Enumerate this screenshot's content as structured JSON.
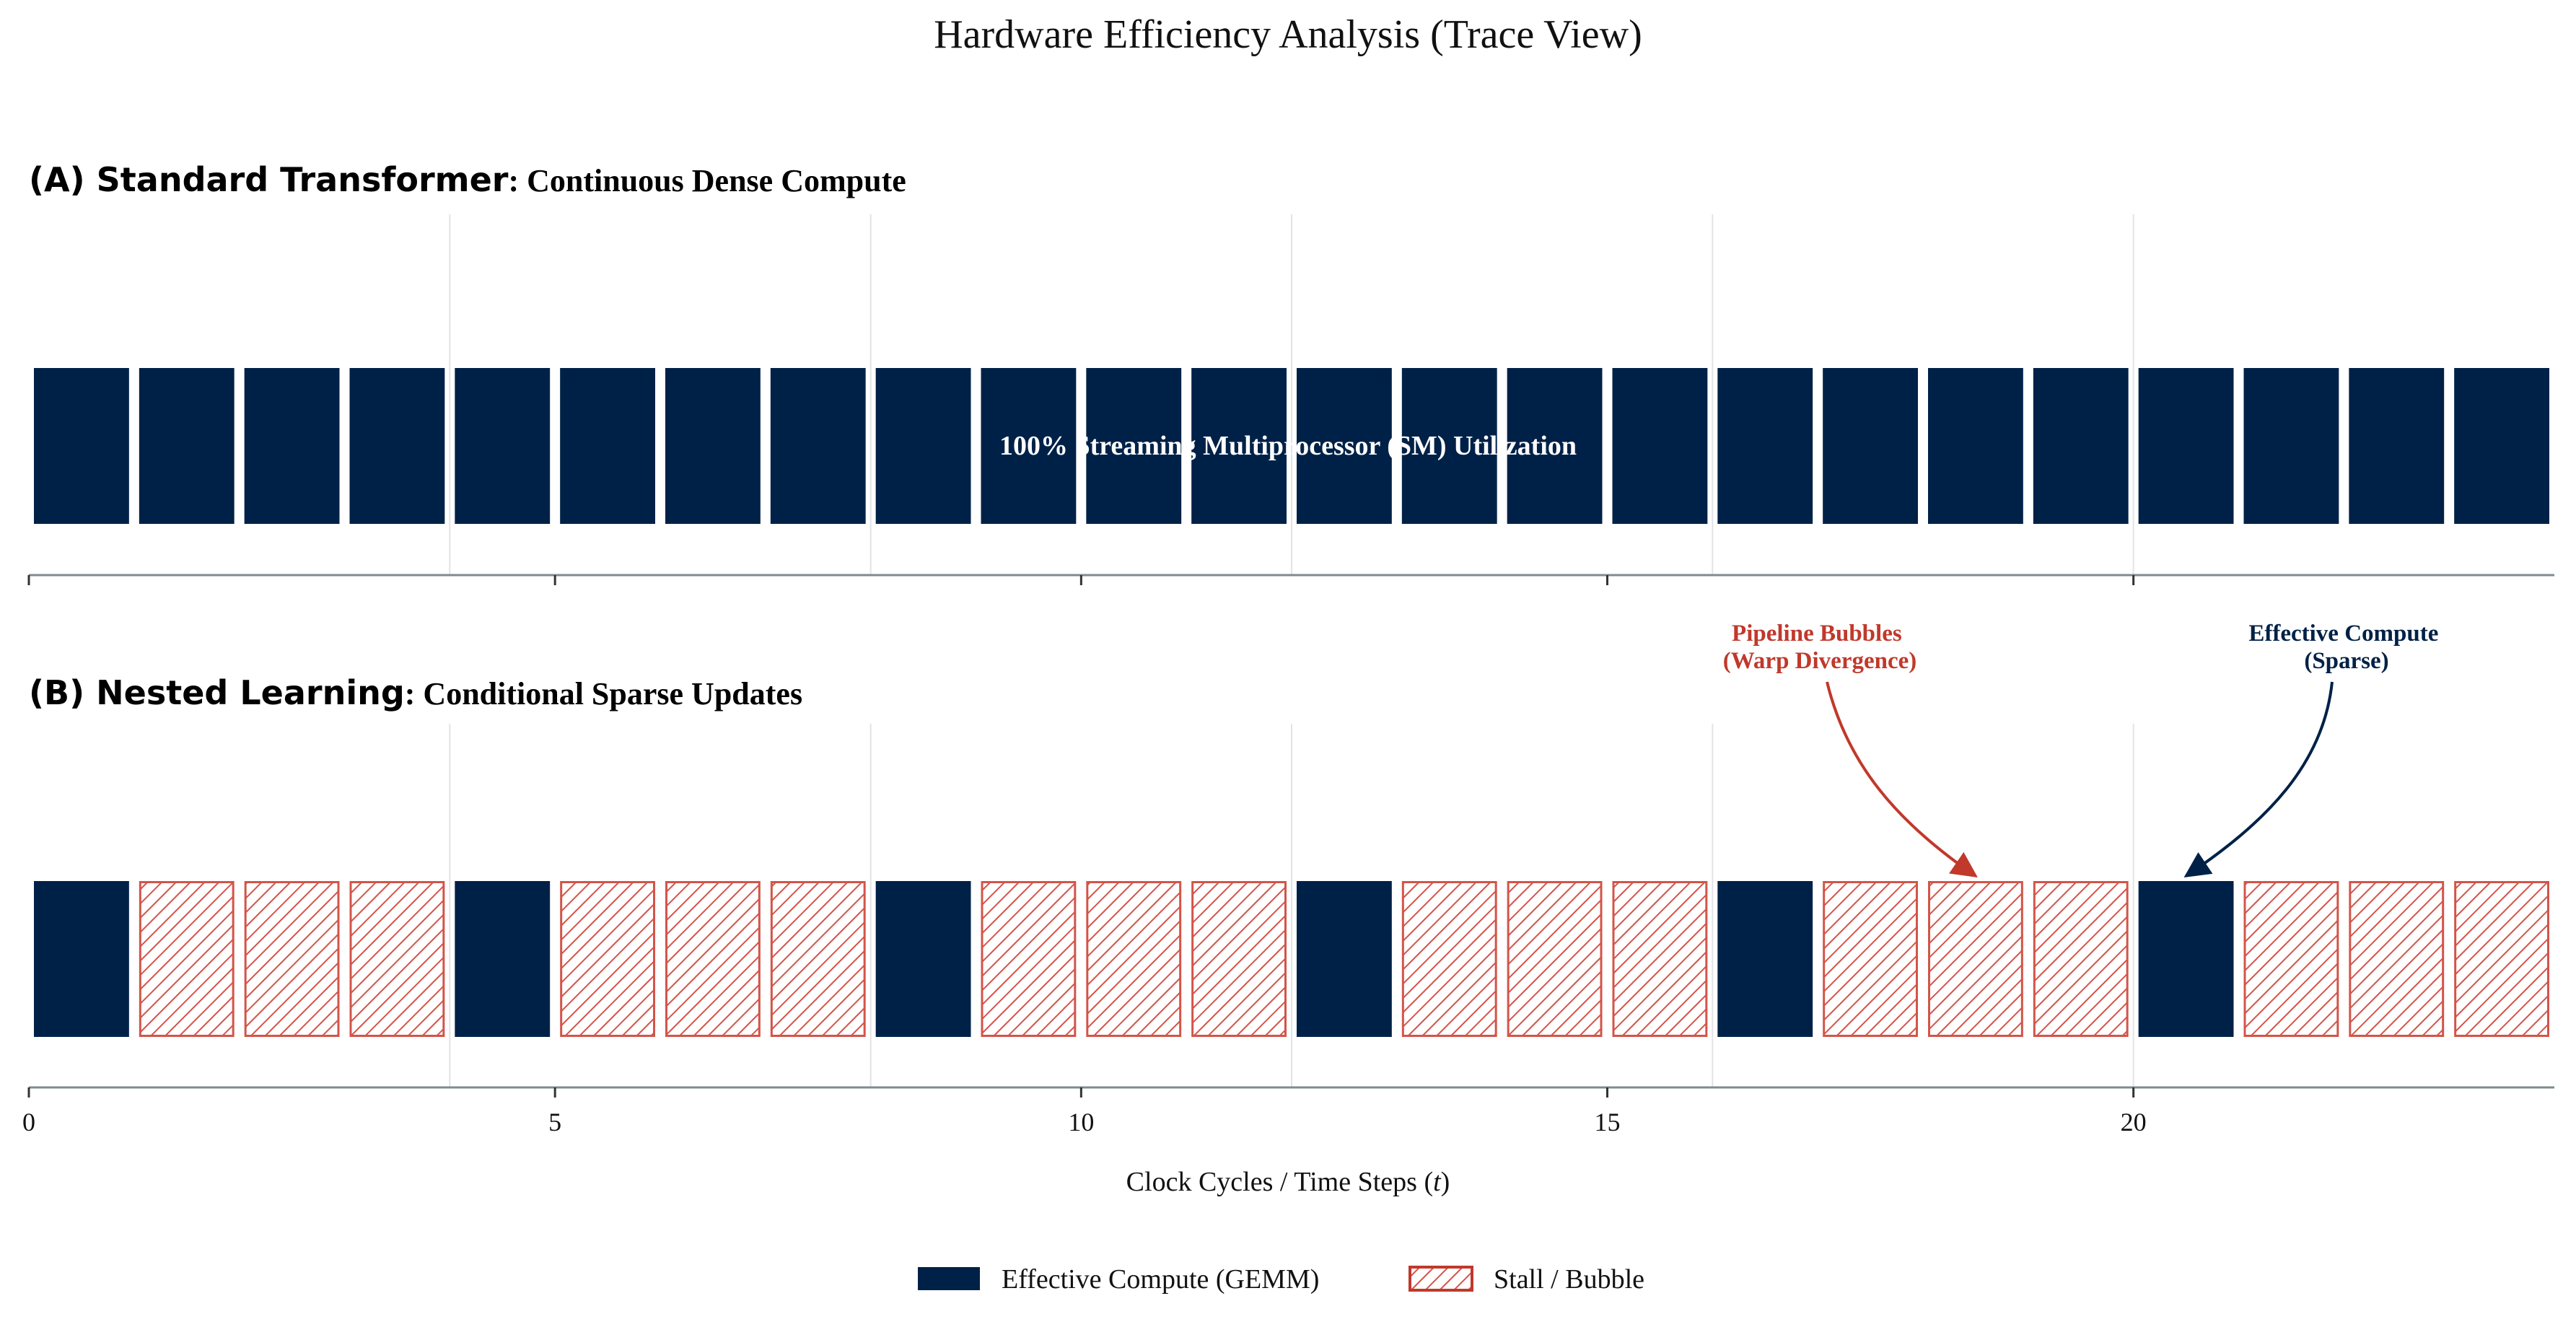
{
  "chart_data": {
    "type": "bar",
    "title": "Hardware Efficiency Analysis (Trace View)",
    "xlabel": "Clock Cycles / Time Steps (",
    "xlabel_var": "t",
    "xlabel_close": ")",
    "xlim": [
      0,
      24
    ],
    "xticks": [
      0,
      5,
      10,
      15,
      20
    ],
    "xtick_labels": [
      "0",
      "5",
      "10",
      "15",
      "20"
    ],
    "minor_gridlines": [
      4,
      8,
      12,
      16,
      20
    ],
    "panels": [
      {
        "id": "A",
        "label": "(A) Standard Transformer",
        "subtitle": ": Continuous Dense Compute",
        "center_text": "100% Streaming Multiprocessor (SM) Utilization",
        "cycles": [
          "compute",
          "compute",
          "compute",
          "compute",
          "compute",
          "compute",
          "compute",
          "compute",
          "compute",
          "compute",
          "compute",
          "compute",
          "compute",
          "compute",
          "compute",
          "compute",
          "compute",
          "compute",
          "compute",
          "compute",
          "compute",
          "compute",
          "compute",
          "compute"
        ]
      },
      {
        "id": "B",
        "label": "(B) Nested Learning",
        "subtitle": ": Conditional Sparse Updates",
        "cycles": [
          "compute",
          "stall",
          "stall",
          "stall",
          "compute",
          "stall",
          "stall",
          "stall",
          "compute",
          "stall",
          "stall",
          "stall",
          "compute",
          "stall",
          "stall",
          "stall",
          "compute",
          "stall",
          "stall",
          "stall",
          "compute",
          "stall",
          "stall",
          "stall"
        ]
      }
    ],
    "annotations": [
      {
        "line1": "Pipeline Bubbles",
        "line2": "(Warp Divergence)",
        "target_cycle": 18.5,
        "color": "#c0392b"
      },
      {
        "line1": "Effective Compute",
        "line2": "(Sparse)",
        "target_cycle": 20.5,
        "color": "#002147"
      }
    ],
    "legend": [
      {
        "label": "Effective Compute (GEMM)",
        "kind": "compute"
      },
      {
        "label": "Stall / Bubble",
        "kind": "stall"
      }
    ],
    "colors": {
      "compute": "#002147",
      "stall_edge": "#d35449",
      "annotation_red": "#c0392b",
      "annotation_navy": "#002147",
      "grid": "#e3e3e3",
      "axis": "#7d8b8f"
    }
  }
}
